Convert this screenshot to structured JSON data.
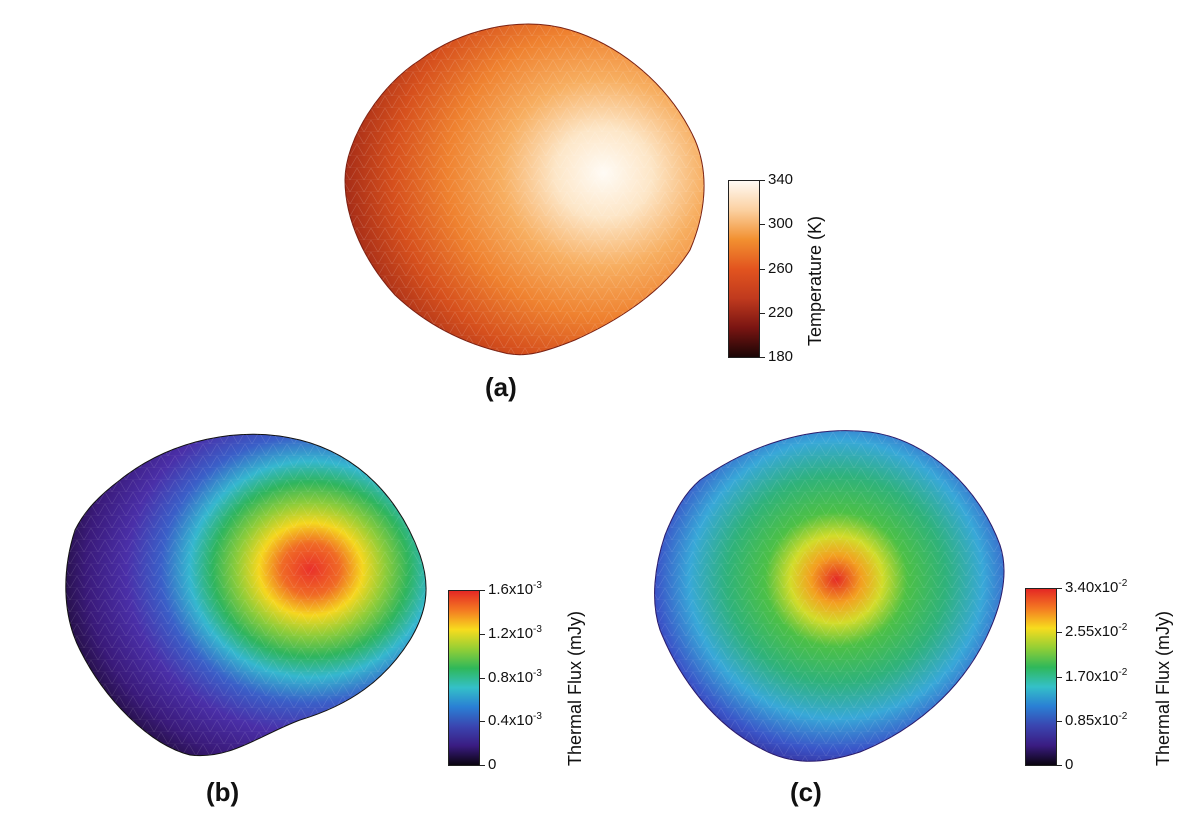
{
  "panels": [
    {
      "label": "(a)",
      "colorbar": {
        "title": "Temperature (K)",
        "ticks": [
          "340",
          "300",
          "260",
          "220",
          "180"
        ],
        "colormap": "hot",
        "stops": [
          "#fffaf4",
          "#fbd0a0",
          "#f29030",
          "#e2541f",
          "#c03a1e",
          "#7a1512",
          "#1a0505"
        ]
      }
    },
    {
      "label": "(b)",
      "colorbar": {
        "title": "Thermal Flux (mJy)",
        "ticks": [
          {
            "base": "1.6x10",
            "exp": "-3"
          },
          {
            "base": "1.2x10",
            "exp": "-3"
          },
          {
            "base": "0.8x10",
            "exp": "-3"
          },
          {
            "base": "0.4x10",
            "exp": "-3"
          },
          {
            "base": "0",
            "exp": ""
          }
        ],
        "colormap": "jet",
        "stops": [
          "#e42824",
          "#f47a22",
          "#f7dc1e",
          "#94cf35",
          "#2fb85a",
          "#34c0c8",
          "#2a7fd4",
          "#3a45b0",
          "#3a1c82",
          "#0a0410"
        ]
      }
    },
    {
      "label": "(c)",
      "colorbar": {
        "title": "Thermal Flux (mJy)",
        "ticks": [
          {
            "base": "3.40x10",
            "exp": "-2"
          },
          {
            "base": "2.55x10",
            "exp": "-2"
          },
          {
            "base": "1.70x10",
            "exp": "-2"
          },
          {
            "base": "0.85x10",
            "exp": "-2"
          },
          {
            "base": "0",
            "exp": ""
          }
        ],
        "colormap": "jet",
        "stops": [
          "#e42824",
          "#f47a22",
          "#f7dc1e",
          "#94cf35",
          "#2fb85a",
          "#34c0c8",
          "#2a7fd4",
          "#3a45b0",
          "#3a1c82",
          "#0a0410"
        ]
      }
    }
  ]
}
